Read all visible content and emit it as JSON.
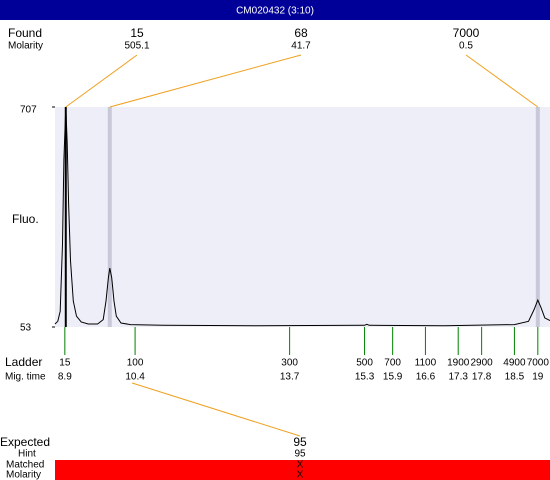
{
  "header": {
    "title": "CM020432 (3:10)"
  },
  "found": {
    "label": "Found",
    "molarity_label": "Molarity",
    "peaks": [
      {
        "size": 15,
        "molarity": 505.1,
        "time": 8.92
      },
      {
        "size": 68,
        "molarity": 41.7,
        "time": 9.86
      },
      {
        "size": 7000,
        "molarity": 0.5,
        "time": 19.0
      }
    ]
  },
  "plot": {
    "y_label": "Fluo.",
    "ylim": [
      53,
      707
    ],
    "yticks": [
      53,
      707
    ],
    "xlim": [
      8.69,
      19.26
    ],
    "trace": {
      "x": [
        8.69,
        8.75,
        8.8,
        8.85,
        8.88,
        8.92,
        8.95,
        8.98,
        9.02,
        9.08,
        9.15,
        9.25,
        9.4,
        9.6,
        9.72,
        9.78,
        9.83,
        9.86,
        9.9,
        9.95,
        10.0,
        10.1,
        10.3,
        11,
        13,
        15.3,
        15.35,
        15.4,
        17,
        18.5,
        18.8,
        18.92,
        19.0,
        19.07,
        19.15,
        19.26
      ],
      "y": [
        62,
        70,
        100,
        300,
        550,
        707,
        600,
        420,
        250,
        130,
        85,
        68,
        62,
        62,
        75,
        130,
        200,
        228,
        200,
        130,
        85,
        65,
        60,
        58,
        57,
        58,
        61,
        58,
        57,
        60,
        70,
        105,
        133,
        110,
        80,
        72
      ]
    }
  },
  "ladder": {
    "label": "Ladder",
    "time_label": "Mig. time",
    "items": [
      {
        "size": 15,
        "time": 8.9
      },
      {
        "size": 100,
        "time": 10.4
      },
      {
        "size": 300,
        "time": 13.7
      },
      {
        "size": 500,
        "time": 15.3
      },
      {
        "size": 700,
        "time": 15.9
      },
      {
        "size": 1100,
        "time": 16.6
      },
      {
        "size": 1900,
        "time": 17.3
      },
      {
        "size": 2900,
        "time": 17.8
      },
      {
        "size": 4900,
        "time": 18.5
      },
      {
        "size": 7000,
        "time": 19
      }
    ]
  },
  "expected": {
    "label": "Expected",
    "value": 95,
    "hint_label": "Hint",
    "hint": 95,
    "matched_label": "Matched",
    "matched": "X",
    "molarity_label": "Molarity",
    "molarity": "X"
  }
}
